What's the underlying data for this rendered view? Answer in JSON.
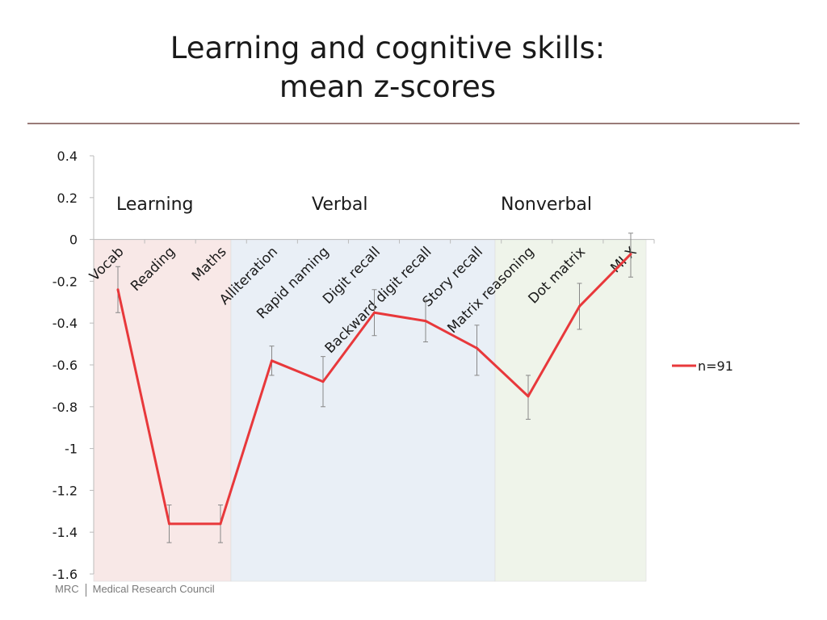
{
  "title": {
    "line1": "Learning and cognitive skills:",
    "line2": "mean z-scores"
  },
  "footer": {
    "org_short": "MRC",
    "org_full": "Medical Research Council"
  },
  "chart_data": {
    "type": "line",
    "categories": [
      "Vocab",
      "Reading",
      "Maths",
      "Alliteration",
      "Rapid naming",
      "Digit recall",
      "Backward digit recall",
      "Story recall",
      "Matrix reasoning",
      "Dot matrix",
      "MI X"
    ],
    "series": [
      {
        "name": "n=91",
        "color": "#e8383b",
        "values": [
          -0.24,
          -1.36,
          -1.36,
          -0.58,
          -0.68,
          -0.35,
          -0.39,
          -0.52,
          -0.75,
          -0.32,
          -0.07
        ],
        "error_low": [
          -0.35,
          -1.45,
          -1.45,
          -0.65,
          -0.8,
          -0.46,
          -0.49,
          -0.65,
          -0.86,
          -0.43,
          -0.18
        ],
        "error_high": [
          -0.13,
          -1.27,
          -1.27,
          -0.51,
          -0.56,
          -0.24,
          -0.29,
          -0.41,
          -0.65,
          -0.21,
          0.03
        ]
      }
    ],
    "ylim": [
      -1.6,
      0.4
    ],
    "yticks": [
      "0.4",
      "0.2",
      "0",
      "-0.2",
      "-0.4",
      "-0.6",
      "-0.8",
      "-1",
      "-1.2",
      "-1.4",
      "-1.6"
    ],
    "grid": false,
    "legend_position": "right",
    "groups": [
      {
        "label": "Learning",
        "start": 0,
        "end": 2,
        "color": "#f8e8e7"
      },
      {
        "label": "Verbal",
        "start": 3,
        "end": 7,
        "color": "#e9eff6"
      },
      {
        "label": "Nonverbal",
        "start": 8,
        "end": 10,
        "color": "#eff4ea"
      }
    ]
  }
}
